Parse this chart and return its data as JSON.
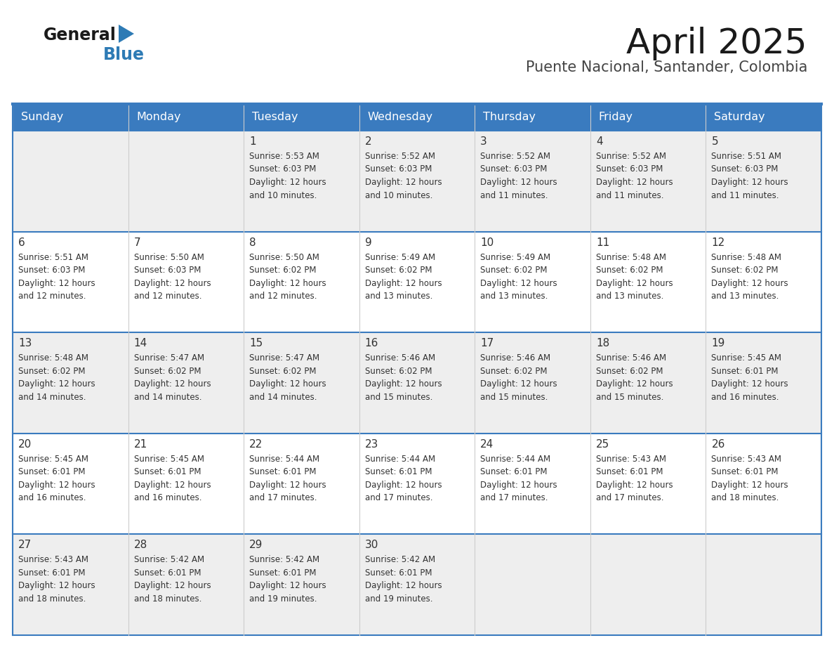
{
  "title": "April 2025",
  "subtitle": "Puente Nacional, Santander, Colombia",
  "header_bg_color": "#3A7BBF",
  "header_text_color": "#FFFFFF",
  "title_color": "#222222",
  "subtitle_color": "#444444",
  "weekdays": [
    "Sunday",
    "Monday",
    "Tuesday",
    "Wednesday",
    "Thursday",
    "Friday",
    "Saturday"
  ],
  "row_bg_colors": [
    "#EEEEEE",
    "#FFFFFF",
    "#EEEEEE",
    "#FFFFFF",
    "#EEEEEE"
  ],
  "border_color": "#3A7BBF",
  "cell_text_color": "#333333",
  "day_num_color": "#333333",
  "calendar": [
    [
      null,
      null,
      {
        "day": 1,
        "sunrise": "5:53 AM",
        "sunset": "6:03 PM",
        "daylight_hours": "12 hours",
        "daylight_mins": "10 minutes"
      },
      {
        "day": 2,
        "sunrise": "5:52 AM",
        "sunset": "6:03 PM",
        "daylight_hours": "12 hours",
        "daylight_mins": "10 minutes"
      },
      {
        "day": 3,
        "sunrise": "5:52 AM",
        "sunset": "6:03 PM",
        "daylight_hours": "12 hours",
        "daylight_mins": "11 minutes"
      },
      {
        "day": 4,
        "sunrise": "5:52 AM",
        "sunset": "6:03 PM",
        "daylight_hours": "12 hours",
        "daylight_mins": "11 minutes"
      },
      {
        "day": 5,
        "sunrise": "5:51 AM",
        "sunset": "6:03 PM",
        "daylight_hours": "12 hours",
        "daylight_mins": "11 minutes"
      }
    ],
    [
      {
        "day": 6,
        "sunrise": "5:51 AM",
        "sunset": "6:03 PM",
        "daylight_hours": "12 hours",
        "daylight_mins": "12 minutes"
      },
      {
        "day": 7,
        "sunrise": "5:50 AM",
        "sunset": "6:03 PM",
        "daylight_hours": "12 hours",
        "daylight_mins": "12 minutes"
      },
      {
        "day": 8,
        "sunrise": "5:50 AM",
        "sunset": "6:02 PM",
        "daylight_hours": "12 hours",
        "daylight_mins": "12 minutes"
      },
      {
        "day": 9,
        "sunrise": "5:49 AM",
        "sunset": "6:02 PM",
        "daylight_hours": "12 hours",
        "daylight_mins": "13 minutes"
      },
      {
        "day": 10,
        "sunrise": "5:49 AM",
        "sunset": "6:02 PM",
        "daylight_hours": "12 hours",
        "daylight_mins": "13 minutes"
      },
      {
        "day": 11,
        "sunrise": "5:48 AM",
        "sunset": "6:02 PM",
        "daylight_hours": "12 hours",
        "daylight_mins": "13 minutes"
      },
      {
        "day": 12,
        "sunrise": "5:48 AM",
        "sunset": "6:02 PM",
        "daylight_hours": "12 hours",
        "daylight_mins": "13 minutes"
      }
    ],
    [
      {
        "day": 13,
        "sunrise": "5:48 AM",
        "sunset": "6:02 PM",
        "daylight_hours": "12 hours",
        "daylight_mins": "14 minutes"
      },
      {
        "day": 14,
        "sunrise": "5:47 AM",
        "sunset": "6:02 PM",
        "daylight_hours": "12 hours",
        "daylight_mins": "14 minutes"
      },
      {
        "day": 15,
        "sunrise": "5:47 AM",
        "sunset": "6:02 PM",
        "daylight_hours": "12 hours",
        "daylight_mins": "14 minutes"
      },
      {
        "day": 16,
        "sunrise": "5:46 AM",
        "sunset": "6:02 PM",
        "daylight_hours": "12 hours",
        "daylight_mins": "15 minutes"
      },
      {
        "day": 17,
        "sunrise": "5:46 AM",
        "sunset": "6:02 PM",
        "daylight_hours": "12 hours",
        "daylight_mins": "15 minutes"
      },
      {
        "day": 18,
        "sunrise": "5:46 AM",
        "sunset": "6:02 PM",
        "daylight_hours": "12 hours",
        "daylight_mins": "15 minutes"
      },
      {
        "day": 19,
        "sunrise": "5:45 AM",
        "sunset": "6:01 PM",
        "daylight_hours": "12 hours",
        "daylight_mins": "16 minutes"
      }
    ],
    [
      {
        "day": 20,
        "sunrise": "5:45 AM",
        "sunset": "6:01 PM",
        "daylight_hours": "12 hours",
        "daylight_mins": "16 minutes"
      },
      {
        "day": 21,
        "sunrise": "5:45 AM",
        "sunset": "6:01 PM",
        "daylight_hours": "12 hours",
        "daylight_mins": "16 minutes"
      },
      {
        "day": 22,
        "sunrise": "5:44 AM",
        "sunset": "6:01 PM",
        "daylight_hours": "12 hours",
        "daylight_mins": "17 minutes"
      },
      {
        "day": 23,
        "sunrise": "5:44 AM",
        "sunset": "6:01 PM",
        "daylight_hours": "12 hours",
        "daylight_mins": "17 minutes"
      },
      {
        "day": 24,
        "sunrise": "5:44 AM",
        "sunset": "6:01 PM",
        "daylight_hours": "12 hours",
        "daylight_mins": "17 minutes"
      },
      {
        "day": 25,
        "sunrise": "5:43 AM",
        "sunset": "6:01 PM",
        "daylight_hours": "12 hours",
        "daylight_mins": "17 minutes"
      },
      {
        "day": 26,
        "sunrise": "5:43 AM",
        "sunset": "6:01 PM",
        "daylight_hours": "12 hours",
        "daylight_mins": "18 minutes"
      }
    ],
    [
      {
        "day": 27,
        "sunrise": "5:43 AM",
        "sunset": "6:01 PM",
        "daylight_hours": "12 hours",
        "daylight_mins": "18 minutes"
      },
      {
        "day": 28,
        "sunrise": "5:42 AM",
        "sunset": "6:01 PM",
        "daylight_hours": "12 hours",
        "daylight_mins": "18 minutes"
      },
      {
        "day": 29,
        "sunrise": "5:42 AM",
        "sunset": "6:01 PM",
        "daylight_hours": "12 hours",
        "daylight_mins": "19 minutes"
      },
      {
        "day": 30,
        "sunrise": "5:42 AM",
        "sunset": "6:01 PM",
        "daylight_hours": "12 hours",
        "daylight_mins": "19 minutes"
      },
      null,
      null,
      null
    ]
  ]
}
